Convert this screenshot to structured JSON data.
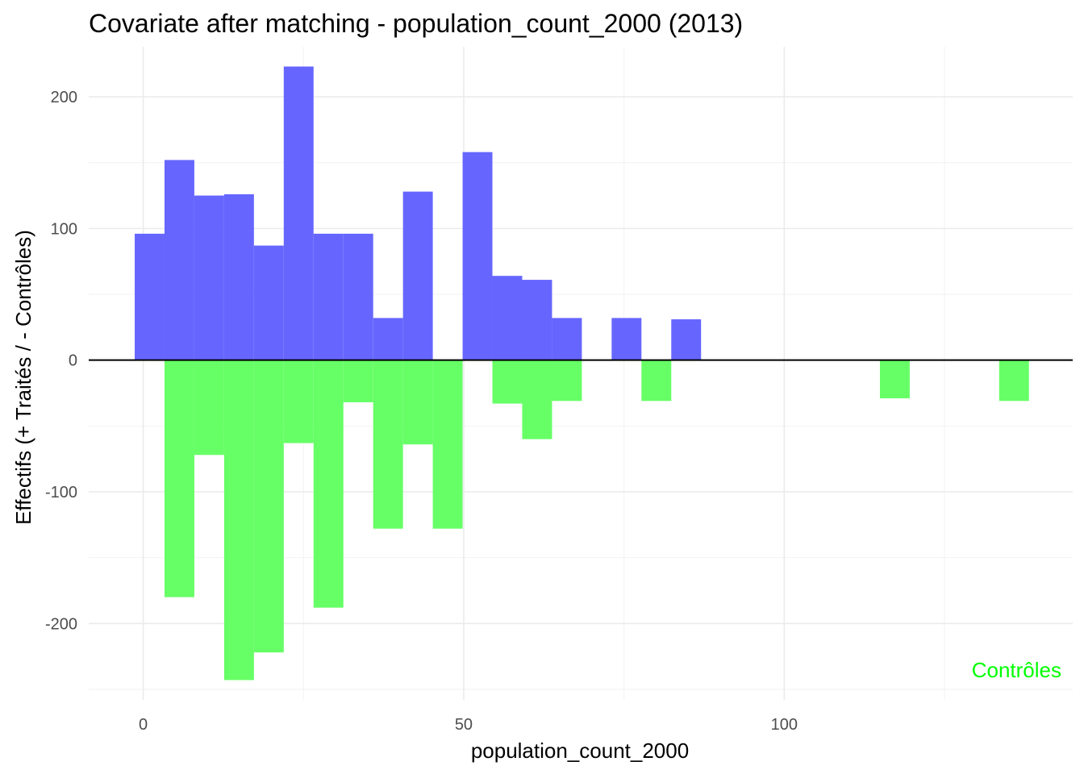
{
  "chart_data": {
    "type": "bar",
    "title": "Covariate after matching - population_count_2000 (2013)",
    "xlabel": "population_count_2000",
    "ylabel": "Effectifs (+ Traités / - Contrôles)",
    "xlim": [
      -8.5,
      145
    ],
    "ylim": [
      -258,
      238
    ],
    "x_ticks": [
      0,
      50,
      100
    ],
    "y_ticks": [
      -200,
      -100,
      0,
      100,
      200
    ],
    "bin_width": 4.65,
    "grid": true,
    "annotation": {
      "text": "Contrôles",
      "color": "#00ff00",
      "placement": "bottom-right"
    },
    "series": [
      {
        "color": "#6666ff",
        "bins": [
          {
            "x": 1.0,
            "value": 96
          },
          {
            "x": 5.65,
            "value": 152
          },
          {
            "x": 10.3,
            "value": 125
          },
          {
            "x": 14.95,
            "value": 126
          },
          {
            "x": 19.6,
            "value": 87
          },
          {
            "x": 24.25,
            "value": 223
          },
          {
            "x": 28.9,
            "value": 96
          },
          {
            "x": 33.55,
            "value": 96
          },
          {
            "x": 38.2,
            "value": 32
          },
          {
            "x": 42.85,
            "value": 128
          },
          {
            "x": 52.15,
            "value": 158
          },
          {
            "x": 56.8,
            "value": 64
          },
          {
            "x": 61.45,
            "value": 61
          },
          {
            "x": 66.1,
            "value": 32
          },
          {
            "x": 75.4,
            "value": 32
          },
          {
            "x": 84.7,
            "value": 31
          }
        ]
      },
      {
        "color": "#66ff66",
        "bins": [
          {
            "x": 5.65,
            "value": -180
          },
          {
            "x": 10.3,
            "value": -72
          },
          {
            "x": 14.95,
            "value": -243
          },
          {
            "x": 19.6,
            "value": -222
          },
          {
            "x": 24.25,
            "value": -63
          },
          {
            "x": 28.9,
            "value": -188
          },
          {
            "x": 33.55,
            "value": -32
          },
          {
            "x": 38.2,
            "value": -128
          },
          {
            "x": 42.85,
            "value": -64
          },
          {
            "x": 47.5,
            "value": -128
          },
          {
            "x": 56.8,
            "value": -33
          },
          {
            "x": 61.45,
            "value": -60
          },
          {
            "x": 66.1,
            "value": -31
          },
          {
            "x": 80.05,
            "value": -31
          },
          {
            "x": 117.25,
            "value": -29
          },
          {
            "x": 135.85,
            "value": -31
          }
        ]
      }
    ]
  }
}
